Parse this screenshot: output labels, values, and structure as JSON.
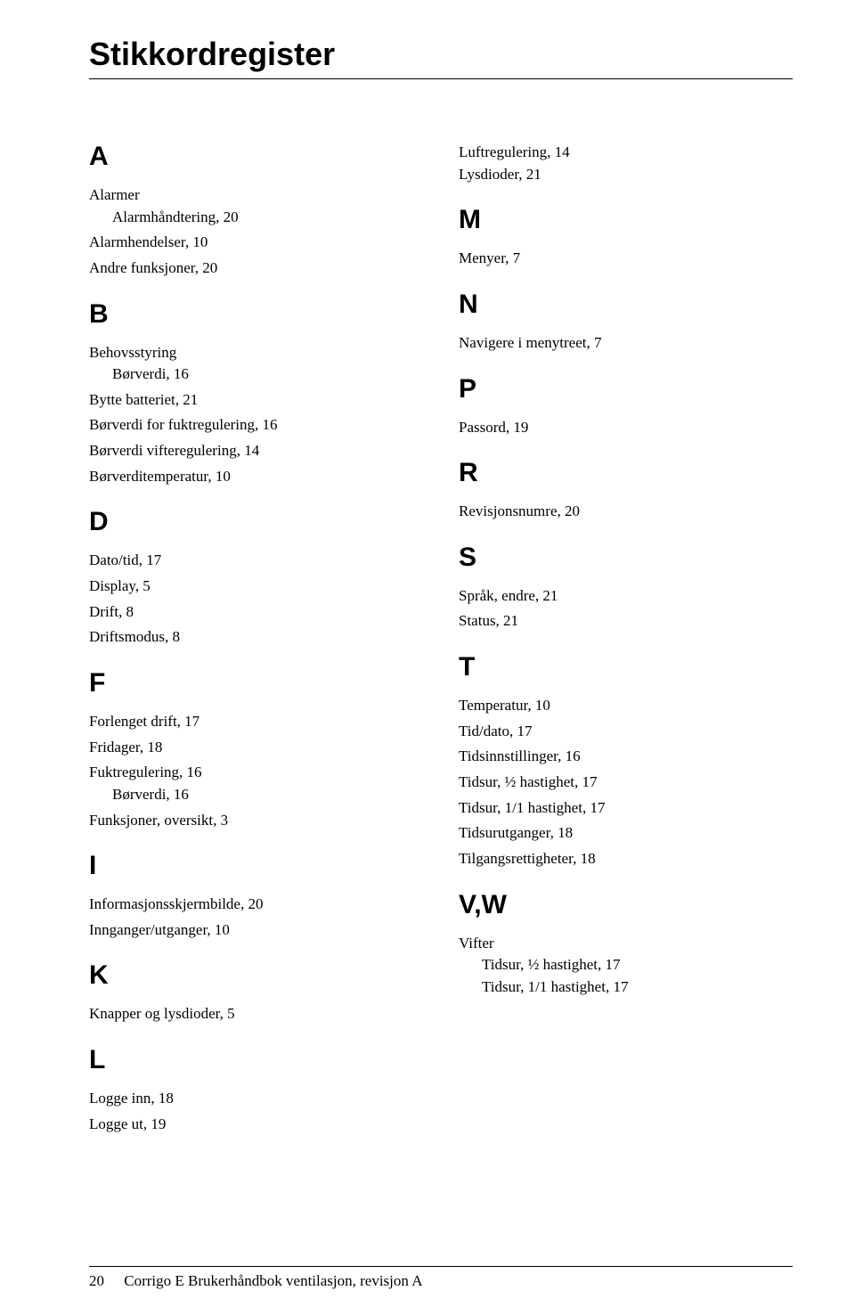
{
  "title": "Stikkordregister",
  "left": {
    "A": {
      "letter": "A",
      "items": [
        {
          "label": "Alarmer",
          "children": [
            {
              "label": "Alarmhåndtering, 20"
            }
          ]
        },
        {
          "label": "Alarmhendelser, 10"
        },
        {
          "label": "Andre funksjoner, 20"
        }
      ]
    },
    "B": {
      "letter": "B",
      "items": [
        {
          "label": "Behovsstyring",
          "children": [
            {
              "label": "Børverdi, 16"
            }
          ]
        },
        {
          "label": "Bytte batteriet, 21"
        },
        {
          "label": "Børverdi for fuktregulering, 16"
        },
        {
          "label": "Børverdi vifteregulering, 14"
        },
        {
          "label": "Børverditemperatur, 10"
        }
      ]
    },
    "D": {
      "letter": "D",
      "items": [
        {
          "label": "Dato/tid, 17"
        },
        {
          "label": "Display, 5"
        },
        {
          "label": "Drift, 8"
        },
        {
          "label": "Driftsmodus, 8"
        }
      ]
    },
    "F": {
      "letter": "F",
      "items": [
        {
          "label": "Forlenget drift, 17"
        },
        {
          "label": "Fridager, 18"
        },
        {
          "label": "Fuktregulering, 16",
          "children": [
            {
              "label": "Børverdi, 16"
            }
          ]
        },
        {
          "label": "Funksjoner, oversikt, 3"
        }
      ]
    },
    "I": {
      "letter": "I",
      "items": [
        {
          "label": "Informasjonsskjermbilde, 20"
        },
        {
          "label": "Innganger/utganger, 10"
        }
      ]
    },
    "K": {
      "letter": "K",
      "items": [
        {
          "label": "Knapper og lysdioder, 5"
        }
      ]
    },
    "L": {
      "letter": "L",
      "items": [
        {
          "label": "Logge inn, 18"
        },
        {
          "label": "Logge ut, 19"
        }
      ]
    }
  },
  "rightTop": [
    {
      "label": "Luftregulering, 14"
    },
    {
      "label": "Lysdioder, 21"
    }
  ],
  "right": {
    "M": {
      "letter": "M",
      "items": [
        {
          "label": "Menyer, 7"
        }
      ]
    },
    "N": {
      "letter": "N",
      "items": [
        {
          "label": "Navigere i menytreet, 7"
        }
      ]
    },
    "P": {
      "letter": "P",
      "items": [
        {
          "label": "Passord, 19"
        }
      ]
    },
    "R": {
      "letter": "R",
      "items": [
        {
          "label": "Revisjonsnumre, 20"
        }
      ]
    },
    "S": {
      "letter": "S",
      "items": [
        {
          "label": "Språk, endre, 21"
        },
        {
          "label": "Status, 21"
        }
      ]
    },
    "T": {
      "letter": "T",
      "items": [
        {
          "label": "Temperatur, 10"
        },
        {
          "label": "Tid/dato, 17"
        },
        {
          "label": "Tidsinnstillinger, 16"
        },
        {
          "label": "Tidsur, ½ hastighet, 17"
        },
        {
          "label": "Tidsur, 1/1 hastighet, 17"
        },
        {
          "label": "Tidsurutganger, 18"
        },
        {
          "label": "Tilgangsrettigheter, 18"
        }
      ]
    },
    "VW": {
      "letter": "V,W",
      "items": [
        {
          "label": "Vifter",
          "children": [
            {
              "label": "Tidsur, ½ hastighet, 17"
            },
            {
              "label": "Tidsur, 1/1 hastighet, 17"
            }
          ]
        }
      ]
    }
  },
  "footer": {
    "page": "20",
    "text": "Corrigo E Brukerhåndbok ventilasjon, revisjon A"
  }
}
